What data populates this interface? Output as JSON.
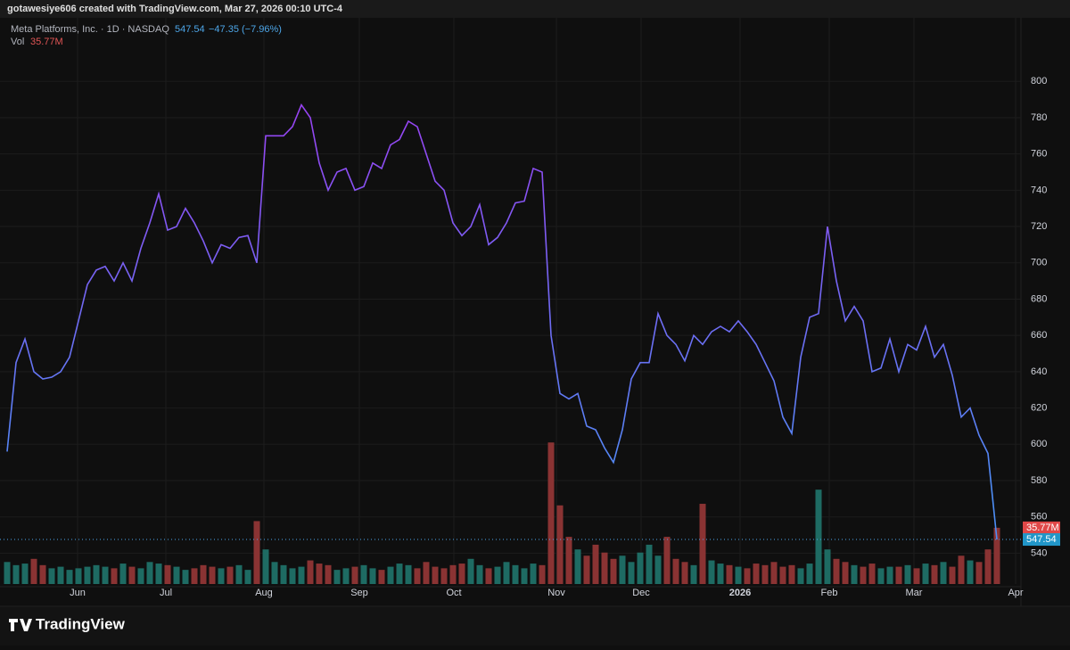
{
  "header": {
    "watermark": "gotawesiye606 created with TradingView.com, Mar 27, 2026 00:10 UTC-4",
    "change": "−47.35 (−7.96%)",
    "volume_label": "35.77M",
    "brand": "TradingView"
  },
  "chart_data": {
    "type": "line",
    "series": [
      {
        "name": "Meta Platforms, Inc. · 1D · NASDAQ",
        "colors": [
          "#9b3ff2",
          "#4d8ef6"
        ],
        "values": [
          596,
          645,
          658,
          640,
          636,
          637,
          640,
          648,
          668,
          688,
          696,
          698,
          690,
          700,
          690,
          708,
          722,
          738,
          718,
          720,
          730,
          722,
          712,
          700,
          710,
          708,
          714,
          715,
          700,
          770,
          770,
          770,
          775,
          787,
          780,
          755,
          740,
          750,
          752,
          740,
          742,
          755,
          752,
          765,
          768,
          778,
          775,
          760,
          745,
          740,
          722,
          715,
          720,
          732,
          710,
          714,
          722,
          733,
          734,
          752,
          750,
          660,
          628,
          625,
          628,
          610,
          608,
          598,
          590,
          608,
          636,
          645,
          645,
          672,
          660,
          655,
          646,
          660,
          655,
          662,
          665,
          662,
          668,
          662,
          655,
          645,
          635,
          615,
          606,
          648,
          670,
          672,
          720,
          690,
          668,
          676,
          668,
          640,
          642,
          658,
          640,
          655,
          652,
          665,
          648,
          655,
          638,
          615,
          620,
          605,
          595,
          547.54
        ]
      },
      {
        "name": "Vol",
        "axis": "vol",
        "colors": [
          "#1e6b63",
          "#8a3333"
        ],
        "values": [
          14,
          12,
          13,
          16,
          12,
          10,
          11,
          9,
          10,
          11,
          12,
          11,
          10,
          13,
          11,
          10,
          14,
          13,
          12,
          11,
          9,
          10,
          12,
          11,
          10,
          11,
          12,
          9,
          40,
          22,
          14,
          12,
          10,
          11,
          15,
          13,
          12,
          9,
          10,
          11,
          12,
          10,
          9,
          11,
          13,
          12,
          10,
          14,
          11,
          10,
          12,
          13,
          16,
          12,
          10,
          11,
          14,
          12,
          10,
          13,
          12,
          90,
          50,
          30,
          22,
          18,
          25,
          20,
          16,
          18,
          14,
          20,
          25,
          18,
          30,
          16,
          14,
          12,
          51,
          15,
          13,
          12,
          11,
          10,
          13,
          12,
          14,
          11,
          12,
          10,
          13,
          60,
          22,
          16,
          14,
          12,
          11,
          13,
          10,
          11,
          11,
          12,
          10,
          13,
          12,
          14,
          11,
          18,
          15,
          14,
          22,
          35.77
        ]
      }
    ],
    "ylim": [
      523,
      835
    ],
    "yticks": [
      540,
      560,
      580,
      600,
      620,
      640,
      660,
      680,
      700,
      720,
      740,
      760,
      780,
      800
    ],
    "vol_ylim": [
      0,
      360
    ],
    "xlim": [
      -0.8,
      113.7
    ],
    "xticks": [
      {
        "value": 7.9,
        "label": "Jun"
      },
      {
        "value": 17.8,
        "label": "Jul"
      },
      {
        "value": 28.8,
        "label": "Aug"
      },
      {
        "value": 39.5,
        "label": "Sep"
      },
      {
        "value": 50.1,
        "label": "Oct"
      },
      {
        "value": 61.6,
        "label": "Nov"
      },
      {
        "value": 71.1,
        "label": "Dec"
      },
      {
        "value": 82.2,
        "label": "2026"
      },
      {
        "value": 92.2,
        "label": "Feb"
      },
      {
        "value": 101.7,
        "label": "Mar"
      },
      {
        "value": 113.1,
        "label": "Apr"
      }
    ],
    "grid": true
  }
}
